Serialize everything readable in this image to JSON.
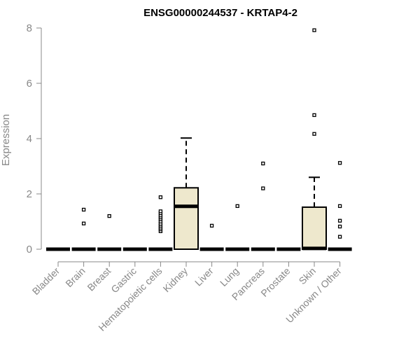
{
  "chart_data": {
    "type": "boxplot",
    "title": "ENSG00000244537 - KRTAP4-2",
    "xlabel": "",
    "ylabel": "Expression",
    "ylim": [
      0,
      8
    ],
    "yticks": [
      0,
      2,
      4,
      6,
      8
    ],
    "box_fill": "#eee8cd",
    "categories": [
      "Bladder",
      "Brain",
      "Breast",
      "Gastric",
      "Hematopoietic cells",
      "Kidney",
      "Liver",
      "Lung",
      "Pancreas",
      "Prostate",
      "Skin",
      "Unknown / Other"
    ],
    "boxes": [
      {
        "category": "Bladder",
        "q1": 0,
        "median": 0,
        "q3": 0,
        "whisker_low": 0,
        "whisker_high": 0,
        "outliers": []
      },
      {
        "category": "Brain",
        "q1": 0,
        "median": 0,
        "q3": 0,
        "whisker_low": 0,
        "whisker_high": 0,
        "outliers": [
          0.93,
          1.43
        ]
      },
      {
        "category": "Breast",
        "q1": 0,
        "median": 0,
        "q3": 0,
        "whisker_low": 0,
        "whisker_high": 0,
        "outliers": [
          1.2
        ]
      },
      {
        "category": "Gastric",
        "q1": 0,
        "median": 0,
        "q3": 0,
        "whisker_low": 0,
        "whisker_high": 0,
        "outliers": []
      },
      {
        "category": "Hematopoietic cells",
        "q1": 0,
        "median": 0,
        "q3": 0,
        "whisker_low": 0,
        "whisker_high": 0,
        "outliers": [
          0.65,
          0.72,
          0.78,
          0.85,
          0.92,
          1.0,
          1.08,
          1.15,
          1.22,
          1.3,
          1.37,
          1.88
        ]
      },
      {
        "category": "Kidney",
        "q1": 0,
        "median": 1.55,
        "q3": 2.22,
        "whisker_low": 0,
        "whisker_high": 4.02,
        "outliers": []
      },
      {
        "category": "Liver",
        "q1": 0,
        "median": 0,
        "q3": 0,
        "whisker_low": 0,
        "whisker_high": 0,
        "outliers": [
          0.85
        ]
      },
      {
        "category": "Lung",
        "q1": 0,
        "median": 0,
        "q3": 0,
        "whisker_low": 0,
        "whisker_high": 0,
        "outliers": [
          1.56
        ]
      },
      {
        "category": "Pancreas",
        "q1": 0,
        "median": 0,
        "q3": 0,
        "whisker_low": 0,
        "whisker_high": 0,
        "outliers": [
          2.2,
          3.1
        ]
      },
      {
        "category": "Prostate",
        "q1": 0,
        "median": 0,
        "q3": 0,
        "whisker_low": 0,
        "whisker_high": 0,
        "outliers": []
      },
      {
        "category": "Skin",
        "q1": 0,
        "median": 0.03,
        "q3": 1.52,
        "whisker_low": 0,
        "whisker_high": 2.6,
        "outliers": [
          4.17,
          4.85,
          7.92
        ]
      },
      {
        "category": "Unknown / Other",
        "q1": 0,
        "median": 0,
        "q3": 0,
        "whisker_low": 0,
        "whisker_high": 0,
        "outliers": [
          0.45,
          0.82,
          1.03,
          1.56,
          3.12
        ]
      }
    ]
  }
}
